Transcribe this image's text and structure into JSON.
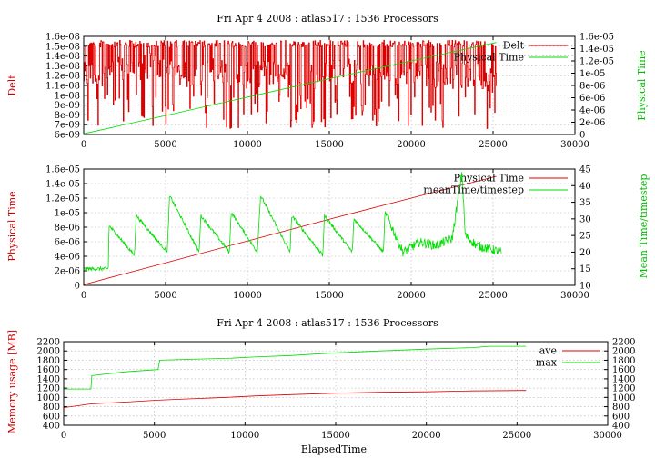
{
  "colors": {
    "red": "#dd0000",
    "green": "#00dd00",
    "axis_red": "#cc0000",
    "axis_green": "#00bb00"
  },
  "chart_data": [
    {
      "type": "line",
      "title": "Fri Apr 4 2008 : atlas517 : 1536 Processors",
      "xlabel": "",
      "ylabel": "Delt",
      "y2label": "Physical Time",
      "xlim": [
        0,
        30000
      ],
      "ylim": [
        6e-09,
        1.6e-08
      ],
      "y2lim": [
        0,
        1.6e-05
      ],
      "x_ticks": [
        "0",
        "5000",
        "10000",
        "15000",
        "20000",
        "25000",
        "30000"
      ],
      "y_ticks": [
        "6e-09",
        "7e-09",
        "8e-09",
        "9e-09",
        "1e-08",
        "1.1e-08",
        "1.2e-08",
        "1.3e-08",
        "1.4e-08",
        "1.5e-08",
        "1.6e-08"
      ],
      "y2_ticks": [
        "0",
        "2e-06",
        "4e-06",
        "6e-06",
        "8e-06",
        "1e-05",
        "1.2e-05",
        "1.4e-05",
        "1.6e-05"
      ],
      "grid": true,
      "legend_position": "top-right",
      "series": [
        {
          "name": "Delt",
          "axis": "y",
          "color": "red",
          "style": "noisy",
          "x": [
            0,
            2000,
            4000,
            6000,
            8000,
            10000,
            12000,
            14000,
            16000,
            18000,
            20000,
            22000,
            24000,
            25200
          ],
          "y": [
            1.2e-08,
            1.25e-08,
            1.3e-08,
            1.2e-08,
            1.25e-08,
            1.2e-08,
            1.25e-08,
            1.2e-08,
            1.25e-08,
            1.2e-08,
            1.25e-08,
            1.2e-08,
            1.2e-08,
            1.15e-08
          ],
          "max": 1.56e-08,
          "min": 6.6e-09
        },
        {
          "name": "Physical Time",
          "axis": "y2",
          "color": "green",
          "x": [
            0,
            5000,
            10000,
            15000,
            20000,
            25200
          ],
          "y": [
            1.2e-07,
            3.1e-06,
            6.1e-06,
            9.1e-06,
            1.2e-05,
            1.5e-05
          ]
        }
      ]
    },
    {
      "type": "line",
      "title": "",
      "xlabel": "",
      "ylabel": "Physical Time",
      "y2label": "Mean Time/timestep",
      "xlim": [
        0,
        30000
      ],
      "ylim": [
        0,
        1.6e-05
      ],
      "y2lim": [
        10,
        45
      ],
      "x_ticks": [
        "0",
        "5000",
        "10000",
        "15000",
        "20000",
        "25000",
        "30000"
      ],
      "y_ticks": [
        "0",
        "2e-06",
        "4e-06",
        "6e-06",
        "8e-06",
        "1e-05",
        "1.2e-05",
        "1.4e-05",
        "1.6e-05"
      ],
      "y2_ticks": [
        "10",
        "15",
        "20",
        "25",
        "30",
        "35",
        "40",
        "45"
      ],
      "grid": true,
      "legend_position": "top-right",
      "series": [
        {
          "name": "Physical Time",
          "axis": "y",
          "color": "red",
          "x": [
            0,
            5000,
            10000,
            15000,
            20000,
            25200
          ],
          "y": [
            1e-07,
            3.1e-06,
            6.1e-06,
            9.1e-06,
            1.2e-05,
            1.5e-05
          ]
        },
        {
          "name": "meanTime/timestep",
          "axis": "y2",
          "color": "green",
          "style": "noisy",
          "x": [
            0,
            1500,
            1550,
            3100,
            3200,
            5100,
            5250,
            7050,
            7150,
            8900,
            9000,
            10600,
            10800,
            12600,
            12700,
            14600,
            14700,
            16400,
            16500,
            18300,
            18400,
            19500,
            20500,
            21500,
            22500,
            23100,
            23300,
            24000,
            25500
          ],
          "y": [
            15,
            15,
            28,
            19,
            31,
            20,
            37,
            20,
            31,
            20,
            32,
            20,
            37,
            20,
            31,
            19,
            31,
            20,
            30,
            20,
            32,
            20,
            23,
            22,
            24,
            44,
            25,
            22,
            20
          ],
          "base": 20,
          "noise": 2
        }
      ]
    },
    {
      "type": "line",
      "title": "Fri Apr 4 2008 : atlas517 : 1536 Processors",
      "xlabel": "ElapsedTime",
      "ylabel": "Memory usage [MB]",
      "y2label": "",
      "xlim": [
        0,
        30000
      ],
      "ylim": [
        400,
        2200
      ],
      "y2lim": [
        400,
        2200
      ],
      "x_ticks": [
        "0",
        "5000",
        "10000",
        "15000",
        "20000",
        "25000",
        "30000"
      ],
      "y_ticks": [
        "400",
        "600",
        "800",
        "1000",
        "1200",
        "1400",
        "1600",
        "1800",
        "2000",
        "2200"
      ],
      "y2_ticks": [
        "400",
        "600",
        "800",
        "1000",
        "1200",
        "1400",
        "1600",
        "1800",
        "2000",
        "2200"
      ],
      "grid": true,
      "legend_position": "top-right",
      "series": [
        {
          "name": "ave",
          "axis": "y",
          "color": "red",
          "x": [
            0,
            1500,
            3500,
            5200,
            7000,
            9000,
            10500,
            12500,
            15000,
            17500,
            20000,
            22500,
            25500
          ],
          "y": [
            780,
            860,
            900,
            940,
            970,
            1000,
            1030,
            1060,
            1090,
            1110,
            1120,
            1140,
            1150
          ]
        },
        {
          "name": "max",
          "axis": "y",
          "color": "green",
          "x": [
            0,
            1500,
            1550,
            3400,
            5200,
            5300,
            7000,
            9000,
            10500,
            12500,
            15000,
            17500,
            20000,
            22500,
            23500,
            25500
          ],
          "y": [
            1180,
            1180,
            1470,
            1550,
            1600,
            1800,
            1820,
            1840,
            1870,
            1900,
            1960,
            2000,
            2040,
            2070,
            2100,
            2100
          ]
        }
      ]
    }
  ]
}
